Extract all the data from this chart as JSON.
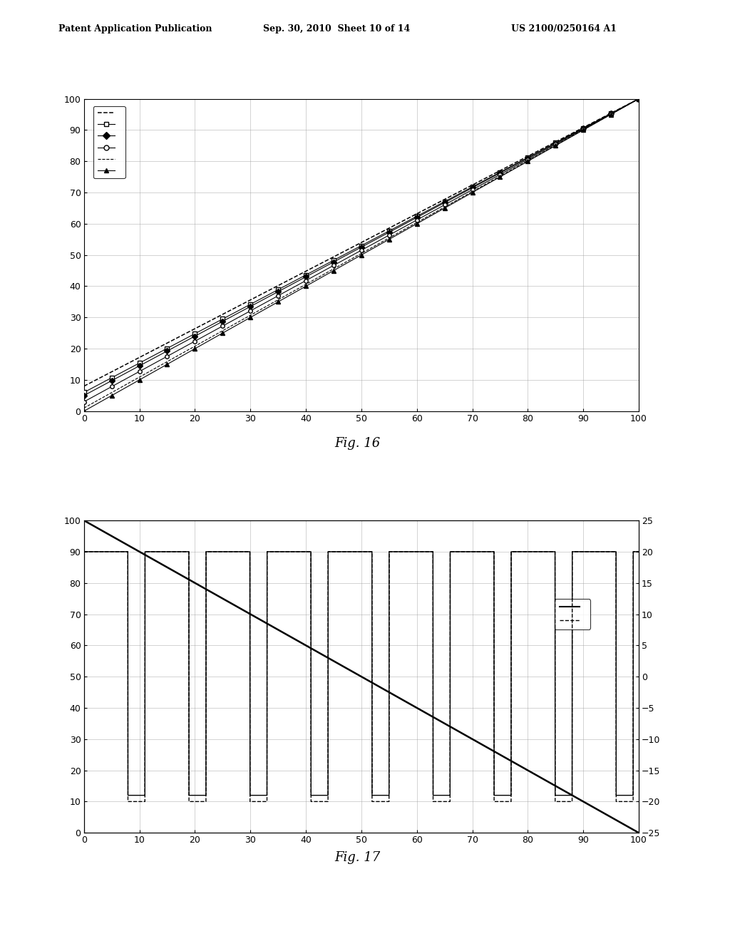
{
  "header_left": "Patent Application Publication",
  "header_center": "Sep. 30, 2010  Sheet 10 of 14",
  "header_right": "US 2100/0250164 A1",
  "fig16_caption": "Fig. 16",
  "fig17_caption": "Fig. 17",
  "fig16": {
    "xlim": [
      0,
      100
    ],
    "ylim": [
      0,
      100
    ],
    "xticks": [
      0,
      10,
      20,
      30,
      40,
      50,
      60,
      70,
      80,
      90,
      100
    ],
    "yticks": [
      0,
      10,
      20,
      30,
      40,
      50,
      60,
      70,
      80,
      90,
      100
    ]
  },
  "fig17": {
    "xlim": [
      0,
      100
    ],
    "ylim_left": [
      0,
      100
    ],
    "ylim_right": [
      -25,
      25
    ],
    "xticks": [
      0,
      10,
      20,
      30,
      40,
      50,
      60,
      70,
      80,
      90,
      100
    ],
    "yticks_left": [
      0,
      10,
      20,
      30,
      40,
      50,
      60,
      70,
      80,
      90,
      100
    ],
    "yticks_right": [
      -25,
      -20,
      -15,
      -10,
      -5,
      0,
      5,
      10,
      15,
      20,
      25
    ]
  },
  "bg_color": "#ffffff",
  "line_color": "#000000",
  "grid_color": "#999999"
}
